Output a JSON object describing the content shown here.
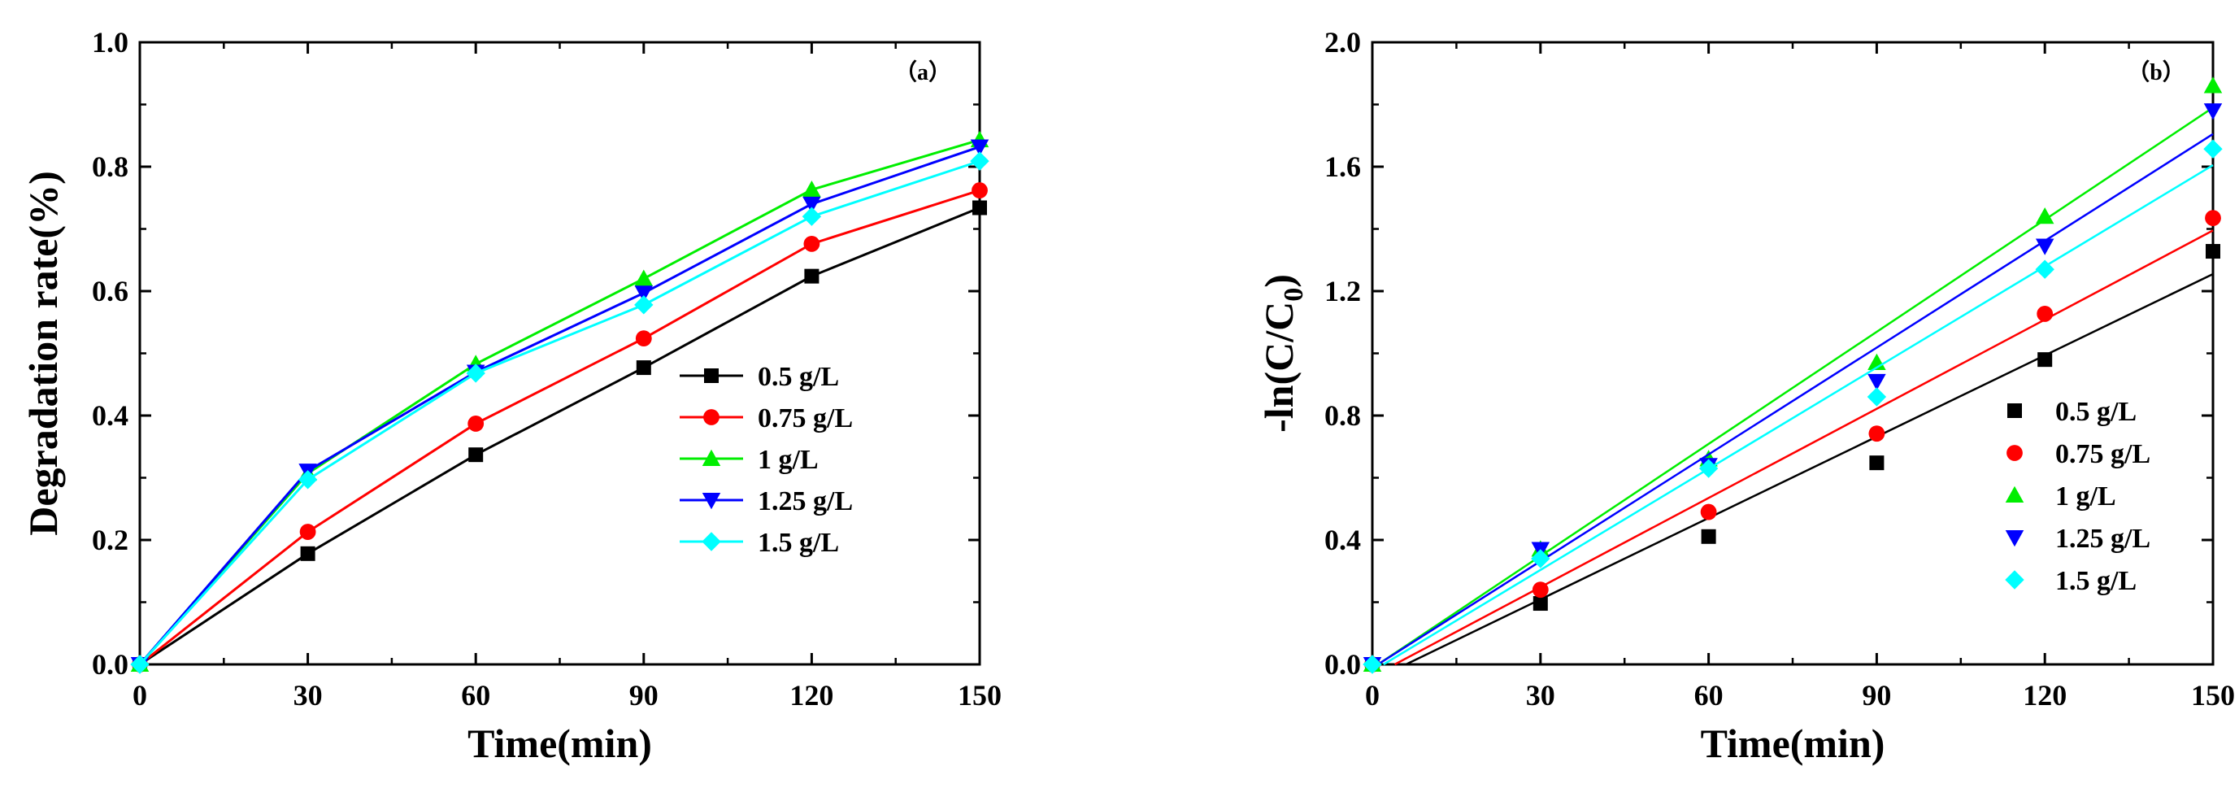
{
  "chart_data": [
    {
      "type": "line",
      "panel_label": "（a）",
      "xlabel": "Time(min)",
      "ylabel": "Degradation rate(%)",
      "xlim": [
        0,
        150
      ],
      "ylim": [
        0,
        1.0
      ],
      "xticks": [
        "0",
        "30",
        "60",
        "90",
        "120",
        "150"
      ],
      "yticks": [
        "0.0",
        "0.2",
        "0.4",
        "0.6",
        "0.8",
        "1.0"
      ],
      "legend_position": "center-right",
      "x": [
        0,
        30,
        60,
        90,
        120,
        150
      ],
      "series": [
        {
          "name": "0.5 g/L",
          "color": "#000000",
          "marker": "square",
          "values": [
            0,
            0.178,
            0.337,
            0.477,
            0.624,
            0.734
          ]
        },
        {
          "name": "0.75 g/L",
          "color": "#ff0000",
          "marker": "circle",
          "values": [
            0,
            0.213,
            0.387,
            0.524,
            0.676,
            0.762
          ]
        },
        {
          "name": "1 g/L",
          "color": "#00ee00",
          "marker": "triangle-up",
          "values": [
            0,
            0.307,
            0.483,
            0.62,
            0.763,
            0.843
          ]
        },
        {
          "name": "1.25 g/L",
          "color": "#0000ff",
          "marker": "triangle-down",
          "values": [
            0,
            0.311,
            0.47,
            0.597,
            0.74,
            0.832
          ]
        },
        {
          "name": "1.5 g/L",
          "color": "#00ffff",
          "marker": "diamond",
          "values": [
            0,
            0.297,
            0.468,
            0.578,
            0.72,
            0.809
          ]
        }
      ]
    },
    {
      "type": "scatter",
      "panel_label": "（b）",
      "xlabel": "Time(min)",
      "ylabel_prefix": "-ln(C/C",
      "ylabel_sub": "0",
      "ylabel_suffix": ")",
      "xlim": [
        0,
        150
      ],
      "ylim": [
        0,
        2.0
      ],
      "xticks": [
        "0",
        "30",
        "60",
        "90",
        "120",
        "150"
      ],
      "yticks": [
        "0.0",
        "0.4",
        "0.8",
        "1.2",
        "1.6",
        "2.0"
      ],
      "legend_position": "center-right",
      "x": [
        0,
        30,
        60,
        90,
        120,
        150
      ],
      "series": [
        {
          "name": "0.5 g/L",
          "color": "#000000",
          "marker": "square",
          "values": [
            0,
            0.196,
            0.411,
            0.648,
            0.98,
            1.328
          ],
          "fit": [
            [
              6,
              0
            ],
            [
              150,
              1.255
            ]
          ]
        },
        {
          "name": "0.75 g/L",
          "color": "#ff0000",
          "marker": "circle",
          "values": [
            0,
            0.24,
            0.49,
            0.742,
            1.127,
            1.435
          ],
          "fit": [
            [
              4,
              0
            ],
            [
              150,
              1.395
            ]
          ]
        },
        {
          "name": "1 g/L",
          "color": "#00ee00",
          "marker": "triangle-up",
          "values": [
            0,
            0.37,
            0.66,
            0.97,
            1.44,
            1.86
          ],
          "fit": [
            [
              1,
              0
            ],
            [
              150,
              1.79
            ]
          ]
        },
        {
          "name": "1.25 g/L",
          "color": "#0000ff",
          "marker": "triangle-down",
          "values": [
            0,
            0.37,
            0.64,
            0.91,
            1.345,
            1.78
          ],
          "fit": [
            [
              1,
              0
            ],
            [
              150,
              1.705
            ]
          ]
        },
        {
          "name": "1.5 g/L",
          "color": "#00ffff",
          "marker": "diamond",
          "values": [
            0,
            0.34,
            0.63,
            0.86,
            1.27,
            1.657
          ],
          "fit": [
            [
              2,
              0
            ],
            [
              150,
              1.605
            ]
          ]
        }
      ]
    }
  ]
}
